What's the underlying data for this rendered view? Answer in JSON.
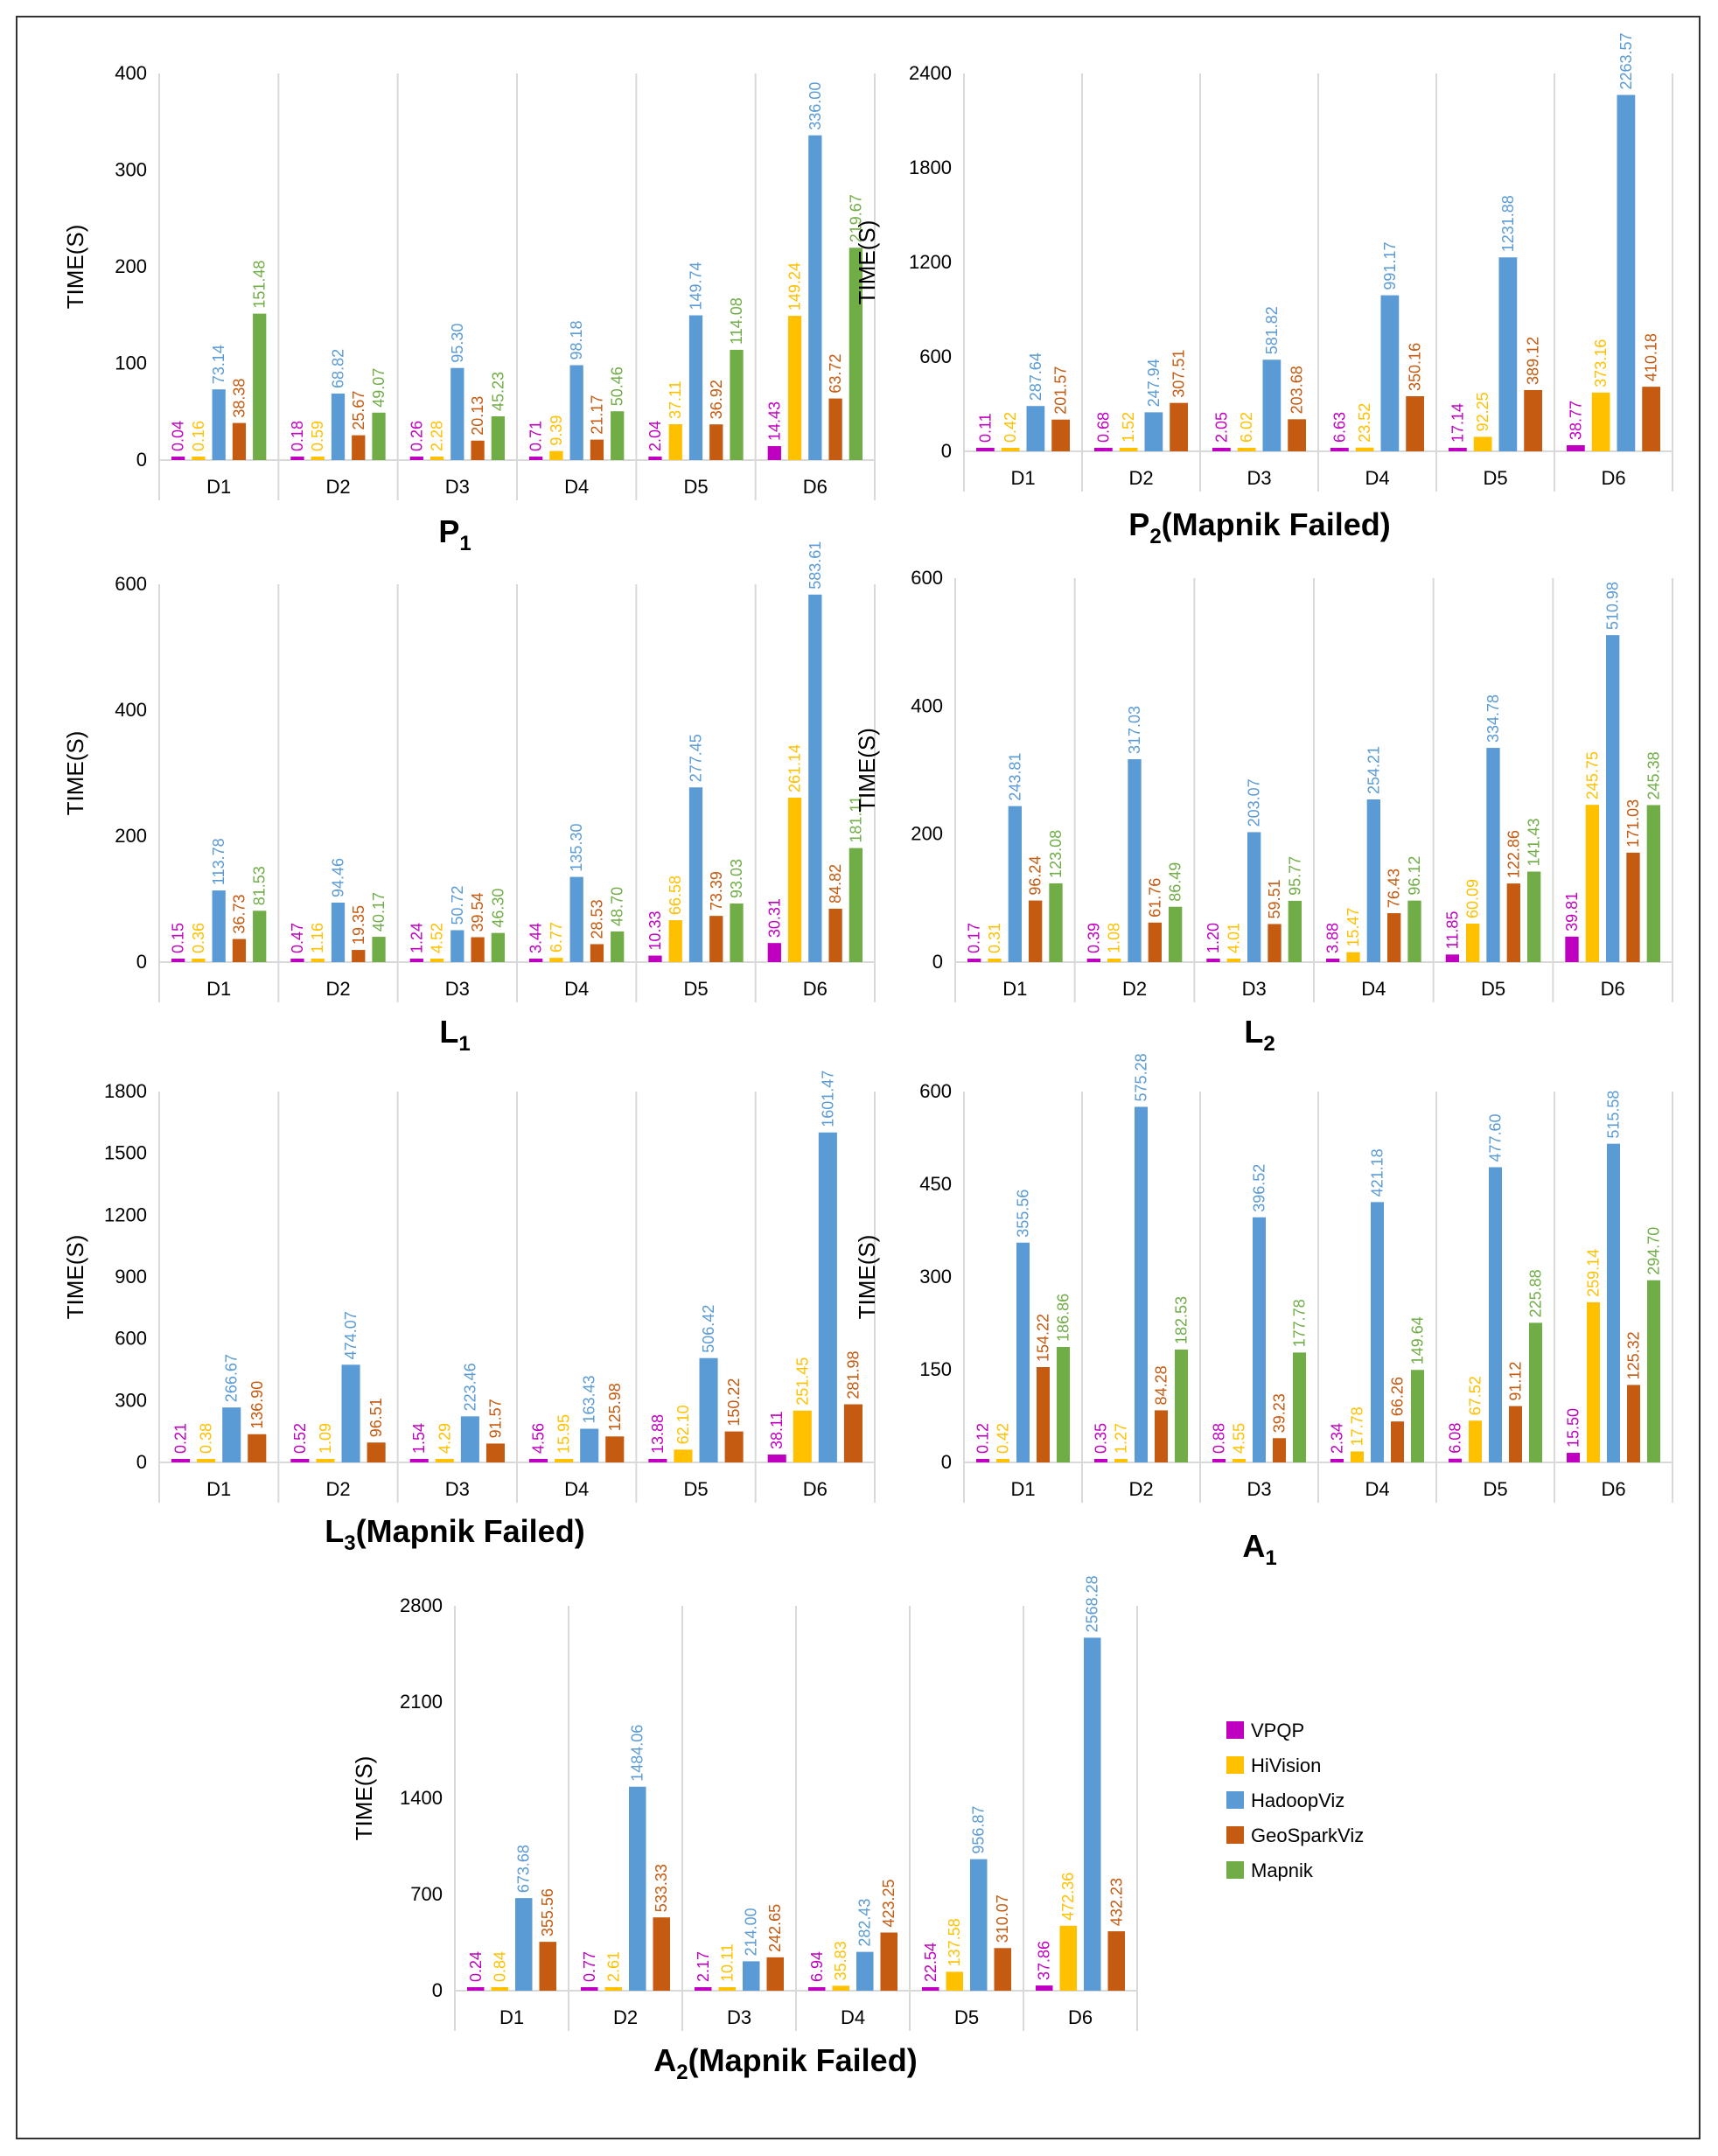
{
  "chart_data": [
    {
      "type": "bar",
      "title": "P",
      "title_sub": "1",
      "title_suffix": "",
      "ylabel": "TIME(S)",
      "ylim": [
        0,
        400
      ],
      "yticks": [
        0,
        100,
        200,
        300,
        400
      ],
      "categories": [
        "D1",
        "D2",
        "D3",
        "D4",
        "D5",
        "D6"
      ],
      "series": [
        {
          "name": "VPQP",
          "values": [
            0.04,
            0.18,
            0.26,
            0.71,
            2.04,
            14.43
          ],
          "labels": [
            "0.04",
            "0.18",
            "0.26",
            "0.71",
            "2.04",
            "14.43"
          ]
        },
        {
          "name": "HiVision",
          "values": [
            0.16,
            0.59,
            2.28,
            9.39,
            37.11,
            149.24
          ],
          "labels": [
            "0.16",
            "0.59",
            "2.28",
            "9.39",
            "37.11",
            "149.24"
          ]
        },
        {
          "name": "HadoopViz",
          "values": [
            73.14,
            68.82,
            95.3,
            98.18,
            149.74,
            336.0
          ],
          "labels": [
            "73.14",
            "68.82",
            "95.30",
            "98.18",
            "149.74",
            "336.00"
          ]
        },
        {
          "name": "GeoSparkViz",
          "values": [
            38.38,
            25.67,
            20.13,
            21.17,
            36.92,
            63.72
          ],
          "labels": [
            "38.38",
            "25.67",
            "20.13",
            "21.17",
            "36.92",
            "63.72"
          ]
        },
        {
          "name": "Mapnik",
          "values": [
            151.48,
            49.07,
            45.23,
            50.46,
            114.08,
            219.67
          ],
          "labels": [
            "151.48",
            "49.07",
            "45.23",
            "50.46",
            "114.08",
            "219.67"
          ]
        }
      ]
    },
    {
      "type": "bar",
      "title": "P",
      "title_sub": "2",
      "title_suffix": "(Mapnik Failed)",
      "ylabel": "TIME(S)",
      "ylim": [
        0,
        2400
      ],
      "yticks": [
        0,
        600,
        1200,
        1800,
        2400
      ],
      "categories": [
        "D1",
        "D2",
        "D3",
        "D4",
        "D5",
        "D6"
      ],
      "series": [
        {
          "name": "VPQP",
          "values": [
            0.11,
            0.68,
            2.05,
            6.63,
            17.14,
            38.77
          ],
          "labels": [
            "0.11",
            "0.68",
            "2.05",
            "6.63",
            "17.14",
            "38.77"
          ]
        },
        {
          "name": "HiVision",
          "values": [
            0.42,
            1.52,
            6.02,
            23.52,
            92.25,
            373.16
          ],
          "labels": [
            "0.42",
            "1.52",
            "6.02",
            "23.52",
            "92.25",
            "373.16"
          ]
        },
        {
          "name": "HadoopViz",
          "values": [
            287.64,
            247.94,
            581.82,
            991.17,
            1231.88,
            2263.57
          ],
          "labels": [
            "287.64",
            "247.94",
            "581.82",
            "991.17",
            "1231.88",
            "2263.57"
          ]
        },
        {
          "name": "GeoSparkViz",
          "values": [
            201.57,
            307.51,
            203.68,
            350.16,
            389.12,
            410.18
          ],
          "labels": [
            "201.57",
            "307.51",
            "203.68",
            "350.16",
            "389.12",
            "410.18"
          ]
        }
      ]
    },
    {
      "type": "bar",
      "title": "L",
      "title_sub": "1",
      "title_suffix": "",
      "ylabel": "TIME(S)",
      "ylim": [
        0,
        600
      ],
      "yticks": [
        0,
        200,
        400,
        600
      ],
      "categories": [
        "D1",
        "D2",
        "D3",
        "D4",
        "D5",
        "D6"
      ],
      "series": [
        {
          "name": "VPQP",
          "values": [
            0.15,
            0.47,
            1.24,
            3.44,
            10.33,
            30.31
          ],
          "labels": [
            "0.15",
            "0.47",
            "1.24",
            "3.44",
            "10.33",
            "30.31"
          ]
        },
        {
          "name": "HiVision",
          "values": [
            0.36,
            1.16,
            4.52,
            6.77,
            66.58,
            261.14
          ],
          "labels": [
            "0.36",
            "1.16",
            "4.52",
            "6.77",
            "66.58",
            "261.14"
          ]
        },
        {
          "name": "HadoopViz",
          "values": [
            113.78,
            94.46,
            50.72,
            135.3,
            277.45,
            583.61
          ],
          "labels": [
            "113.78",
            "94.46",
            "50.72",
            "135.30",
            "277.45",
            "583.61"
          ]
        },
        {
          "name": "GeoSparkViz",
          "values": [
            36.73,
            19.35,
            39.54,
            28.53,
            73.39,
            84.82
          ],
          "labels": [
            "36.73",
            "19.35",
            "39.54",
            "28.53",
            "73.39",
            "84.82"
          ]
        },
        {
          "name": "Mapnik",
          "values": [
            81.53,
            40.17,
            46.3,
            48.7,
            93.03,
            181.11
          ],
          "labels": [
            "81.53",
            "40.17",
            "46.30",
            "48.70",
            "93.03",
            "181.11"
          ]
        }
      ]
    },
    {
      "type": "bar",
      "title": "L",
      "title_sub": "2",
      "title_suffix": "",
      "ylabel": "TIME(S)",
      "ylim": [
        0,
        600
      ],
      "yticks": [
        0,
        200,
        400,
        600
      ],
      "categories": [
        "D1",
        "D2",
        "D3",
        "D4",
        "D5",
        "D6"
      ],
      "series": [
        {
          "name": "VPQP",
          "values": [
            0.17,
            0.39,
            1.2,
            3.88,
            11.85,
            39.81
          ],
          "labels": [
            "0.17",
            "0.39",
            "1.20",
            "3.88",
            "11.85",
            "39.81"
          ]
        },
        {
          "name": "HiVision",
          "values": [
            0.31,
            1.08,
            4.01,
            15.47,
            60.09,
            245.75
          ],
          "labels": [
            "0.31",
            "1.08",
            "4.01",
            "15.47",
            "60.09",
            "245.75"
          ]
        },
        {
          "name": "HadoopViz",
          "values": [
            243.81,
            317.03,
            203.07,
            254.21,
            334.78,
            510.98
          ],
          "labels": [
            "243.81",
            "317.03",
            "203.07",
            "254.21",
            "334.78",
            "510.98"
          ]
        },
        {
          "name": "GeoSparkViz",
          "values": [
            96.24,
            61.76,
            59.51,
            76.43,
            122.86,
            171.03
          ],
          "labels": [
            "96.24",
            "61.76",
            "59.51",
            "76.43",
            "122.86",
            "171.03"
          ]
        },
        {
          "name": "Mapnik",
          "values": [
            123.08,
            86.49,
            95.77,
            96.12,
            141.43,
            245.38
          ],
          "labels": [
            "123.08",
            "86.49",
            "95.77",
            "96.12",
            "141.43",
            "245.38"
          ]
        }
      ]
    },
    {
      "type": "bar",
      "title": "L",
      "title_sub": "3",
      "title_suffix": "(Mapnik Failed)",
      "ylabel": "TIME(S)",
      "ylim": [
        0,
        1800
      ],
      "yticks": [
        0,
        300,
        600,
        900,
        1200,
        1500,
        1800
      ],
      "categories": [
        "D1",
        "D2",
        "D3",
        "D4",
        "D5",
        "D6"
      ],
      "series": [
        {
          "name": "VPQP",
          "values": [
            0.21,
            0.52,
            1.54,
            4.56,
            13.88,
            38.11
          ],
          "labels": [
            "0.21",
            "0.52",
            "1.54",
            "4.56",
            "13.88",
            "38.11"
          ]
        },
        {
          "name": "HiVision",
          "values": [
            0.38,
            1.09,
            4.29,
            15.95,
            62.1,
            251.45
          ],
          "labels": [
            "0.38",
            "1.09",
            "4.29",
            "15.95",
            "62.10",
            "251.45"
          ]
        },
        {
          "name": "HadoopViz",
          "values": [
            266.67,
            474.07,
            223.46,
            163.43,
            506.42,
            1601.47
          ],
          "labels": [
            "266.67",
            "474.07",
            "223.46",
            "163.43",
            "506.42",
            "1601.47"
          ]
        },
        {
          "name": "GeoSparkViz",
          "values": [
            136.9,
            96.51,
            91.57,
            125.98,
            150.22,
            281.98
          ],
          "labels": [
            "136.90",
            "96.51",
            "91.57",
            "125.98",
            "150.22",
            "281.98"
          ]
        }
      ]
    },
    {
      "type": "bar",
      "title": "A",
      "title_sub": "1",
      "title_suffix": "",
      "ylabel": "TIME(S)",
      "ylim": [
        0,
        600
      ],
      "yticks": [
        0,
        150,
        300,
        450,
        600
      ],
      "categories": [
        "D1",
        "D2",
        "D3",
        "D4",
        "D5",
        "D6"
      ],
      "series": [
        {
          "name": "VPQP",
          "values": [
            0.12,
            0.35,
            0.88,
            2.34,
            6.08,
            15.5
          ],
          "labels": [
            "0.12",
            "0.35",
            "0.88",
            "2.34",
            "6.08",
            "15.50"
          ]
        },
        {
          "name": "HiVision",
          "values": [
            0.42,
            1.27,
            4.55,
            17.78,
            67.52,
            259.14
          ],
          "labels": [
            "0.42",
            "1.27",
            "4.55",
            "17.78",
            "67.52",
            "259.14"
          ]
        },
        {
          "name": "HadoopViz",
          "values": [
            355.56,
            575.28,
            396.52,
            421.18,
            477.6,
            515.58
          ],
          "labels": [
            "355.56",
            "575.28",
            "396.52",
            "421.18",
            "477.60",
            "515.58"
          ]
        },
        {
          "name": "GeoSparkViz",
          "values": [
            154.22,
            84.28,
            39.23,
            66.26,
            91.12,
            125.32
          ],
          "labels": [
            "154.22",
            "84.28",
            "39.23",
            "66.26",
            "91.12",
            "125.32"
          ]
        },
        {
          "name": "Mapnik",
          "values": [
            186.86,
            182.53,
            177.78,
            149.64,
            225.88,
            294.7
          ],
          "labels": [
            "186.86",
            "182.53",
            "177.78",
            "149.64",
            "225.88",
            "294.70"
          ]
        }
      ]
    },
    {
      "type": "bar",
      "title": "A",
      "title_sub": "2",
      "title_suffix": "(Mapnik Failed)",
      "ylabel": "TIME(S)",
      "ylim": [
        0,
        2800
      ],
      "yticks": [
        0,
        700,
        1400,
        2100,
        2800
      ],
      "categories": [
        "D1",
        "D2",
        "D3",
        "D4",
        "D5",
        "D6"
      ],
      "series": [
        {
          "name": "VPQP",
          "values": [
            0.24,
            0.77,
            2.17,
            6.94,
            22.54,
            37.86
          ],
          "labels": [
            "0.24",
            "0.77",
            "2.17",
            "6.94",
            "22.54",
            "37.86"
          ]
        },
        {
          "name": "HiVision",
          "values": [
            0.84,
            2.61,
            10.11,
            35.83,
            137.58,
            472.36
          ],
          "labels": [
            "0.84",
            "2.61",
            "10.11",
            "35.83",
            "137.58",
            "472.36"
          ]
        },
        {
          "name": "HadoopViz",
          "values": [
            673.68,
            1484.06,
            214.0,
            282.43,
            956.87,
            2568.28
          ],
          "labels": [
            "673.68",
            "1484.06",
            "214.00",
            "282.43",
            "956.87",
            "2568.28"
          ]
        },
        {
          "name": "GeoSparkViz",
          "values": [
            355.56,
            533.33,
            242.65,
            423.25,
            310.07,
            432.23
          ],
          "labels": [
            "355.56",
            "533.33",
            "242.65",
            "423.25",
            "310.07",
            "432.23"
          ]
        }
      ]
    }
  ],
  "legend": [
    {
      "name": "VPQP",
      "color": "#c000c0"
    },
    {
      "name": "HiVision",
      "color": "#ffc000"
    },
    {
      "name": "HadoopViz",
      "color": "#5b9bd5"
    },
    {
      "name": "GeoSparkViz",
      "color": "#c55a11"
    },
    {
      "name": "Mapnik",
      "color": "#70ad47"
    }
  ]
}
